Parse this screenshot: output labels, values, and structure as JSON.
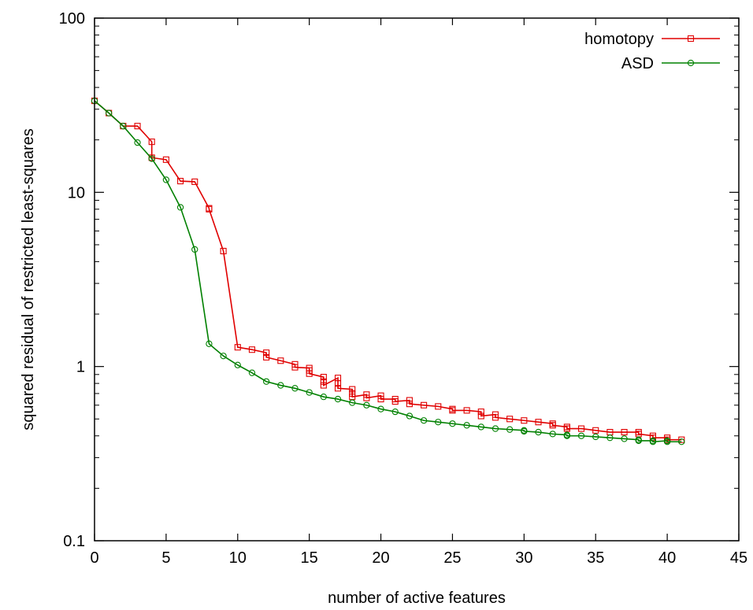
{
  "chart_data": {
    "type": "line",
    "title": "",
    "xlabel": "number of active features",
    "ylabel": "squared residual of restricted least-squares",
    "xlim": [
      0,
      45
    ],
    "ylim": [
      0.1,
      100
    ],
    "yscale": "log",
    "xticks": [
      0,
      5,
      10,
      15,
      20,
      25,
      30,
      35,
      40,
      45
    ],
    "xtick_labels": [
      "0",
      "5",
      "10",
      "15",
      "20",
      "25",
      "30",
      "35",
      "40",
      "45"
    ],
    "yticks": [
      0.1,
      1,
      10,
      100
    ],
    "ytick_labels": [
      "0.1",
      "1",
      "10",
      "100"
    ],
    "grid": false,
    "legend_position": "top-right",
    "series": [
      {
        "name": "homotopy",
        "color": "#e00000",
        "marker": "square",
        "x": [
          0,
          1,
          2,
          3,
          4,
          4,
          5,
          6,
          7,
          8,
          8,
          9,
          10,
          11,
          12,
          12,
          13,
          14,
          14,
          15,
          15,
          15,
          16,
          16,
          16,
          17,
          17,
          17,
          18,
          18,
          18,
          19,
          19,
          20,
          20,
          21,
          21,
          22,
          22,
          23,
          24,
          25,
          25,
          26,
          27,
          27,
          28,
          28,
          29,
          30,
          31,
          32,
          32,
          33,
          33,
          34,
          35,
          36,
          37,
          38,
          38,
          39,
          39,
          40,
          40,
          41
        ],
        "y": [
          33.5,
          28.5,
          24.0,
          24.0,
          19.5,
          15.8,
          15.4,
          11.6,
          11.5,
          8.1,
          8.0,
          4.6,
          1.29,
          1.25,
          1.2,
          1.13,
          1.08,
          1.03,
          0.99,
          0.98,
          0.95,
          0.91,
          0.87,
          0.82,
          0.78,
          0.86,
          0.8,
          0.75,
          0.74,
          0.7,
          0.67,
          0.69,
          0.66,
          0.68,
          0.65,
          0.65,
          0.63,
          0.64,
          0.61,
          0.6,
          0.59,
          0.57,
          0.56,
          0.56,
          0.55,
          0.52,
          0.53,
          0.51,
          0.5,
          0.49,
          0.48,
          0.47,
          0.46,
          0.45,
          0.44,
          0.44,
          0.43,
          0.42,
          0.42,
          0.42,
          0.41,
          0.4,
          0.39,
          0.39,
          0.38,
          0.38
        ]
      },
      {
        "name": "ASD",
        "color": "#008000",
        "marker": "circle",
        "x": [
          0,
          1,
          2,
          3,
          4,
          5,
          6,
          7,
          8,
          9,
          10,
          11,
          12,
          13,
          14,
          15,
          16,
          17,
          18,
          19,
          20,
          21,
          22,
          23,
          24,
          25,
          26,
          27,
          28,
          29,
          30,
          30,
          31,
          32,
          33,
          33,
          34,
          35,
          36,
          37,
          38,
          38,
          39,
          39,
          40,
          40,
          41
        ],
        "y": [
          33.5,
          28.5,
          24.0,
          19.3,
          15.6,
          11.8,
          8.2,
          4.7,
          1.35,
          1.15,
          1.02,
          0.92,
          0.82,
          0.78,
          0.75,
          0.71,
          0.67,
          0.65,
          0.62,
          0.6,
          0.57,
          0.55,
          0.52,
          0.49,
          0.48,
          0.47,
          0.46,
          0.45,
          0.44,
          0.435,
          0.43,
          0.425,
          0.42,
          0.41,
          0.405,
          0.4,
          0.4,
          0.395,
          0.39,
          0.385,
          0.38,
          0.375,
          0.375,
          0.37,
          0.375,
          0.37,
          0.37
        ]
      }
    ]
  }
}
